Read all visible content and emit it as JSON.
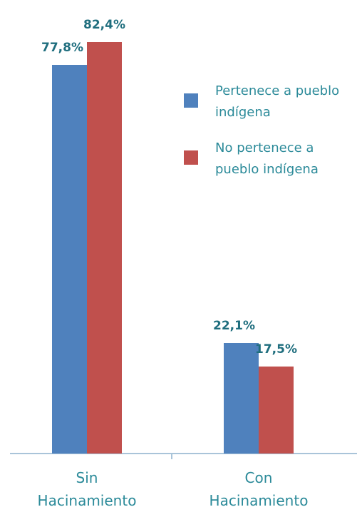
{
  "chart_data": {
    "type": "bar",
    "categories": [
      "Sin Hacinamiento",
      "Con Hacinamiento"
    ],
    "series": [
      {
        "name": "Pertenece a pueblo indígena",
        "color": "#4f81bd",
        "values": [
          77.8,
          22.1
        ],
        "value_labels": [
          "77,8%",
          "22,1%"
        ]
      },
      {
        "name": "No pertenece a pueblo indígena",
        "color": "#c0504d",
        "values": [
          82.4,
          17.5
        ],
        "value_labels": [
          "82,4%",
          "17,5%"
        ]
      }
    ]
  }
}
